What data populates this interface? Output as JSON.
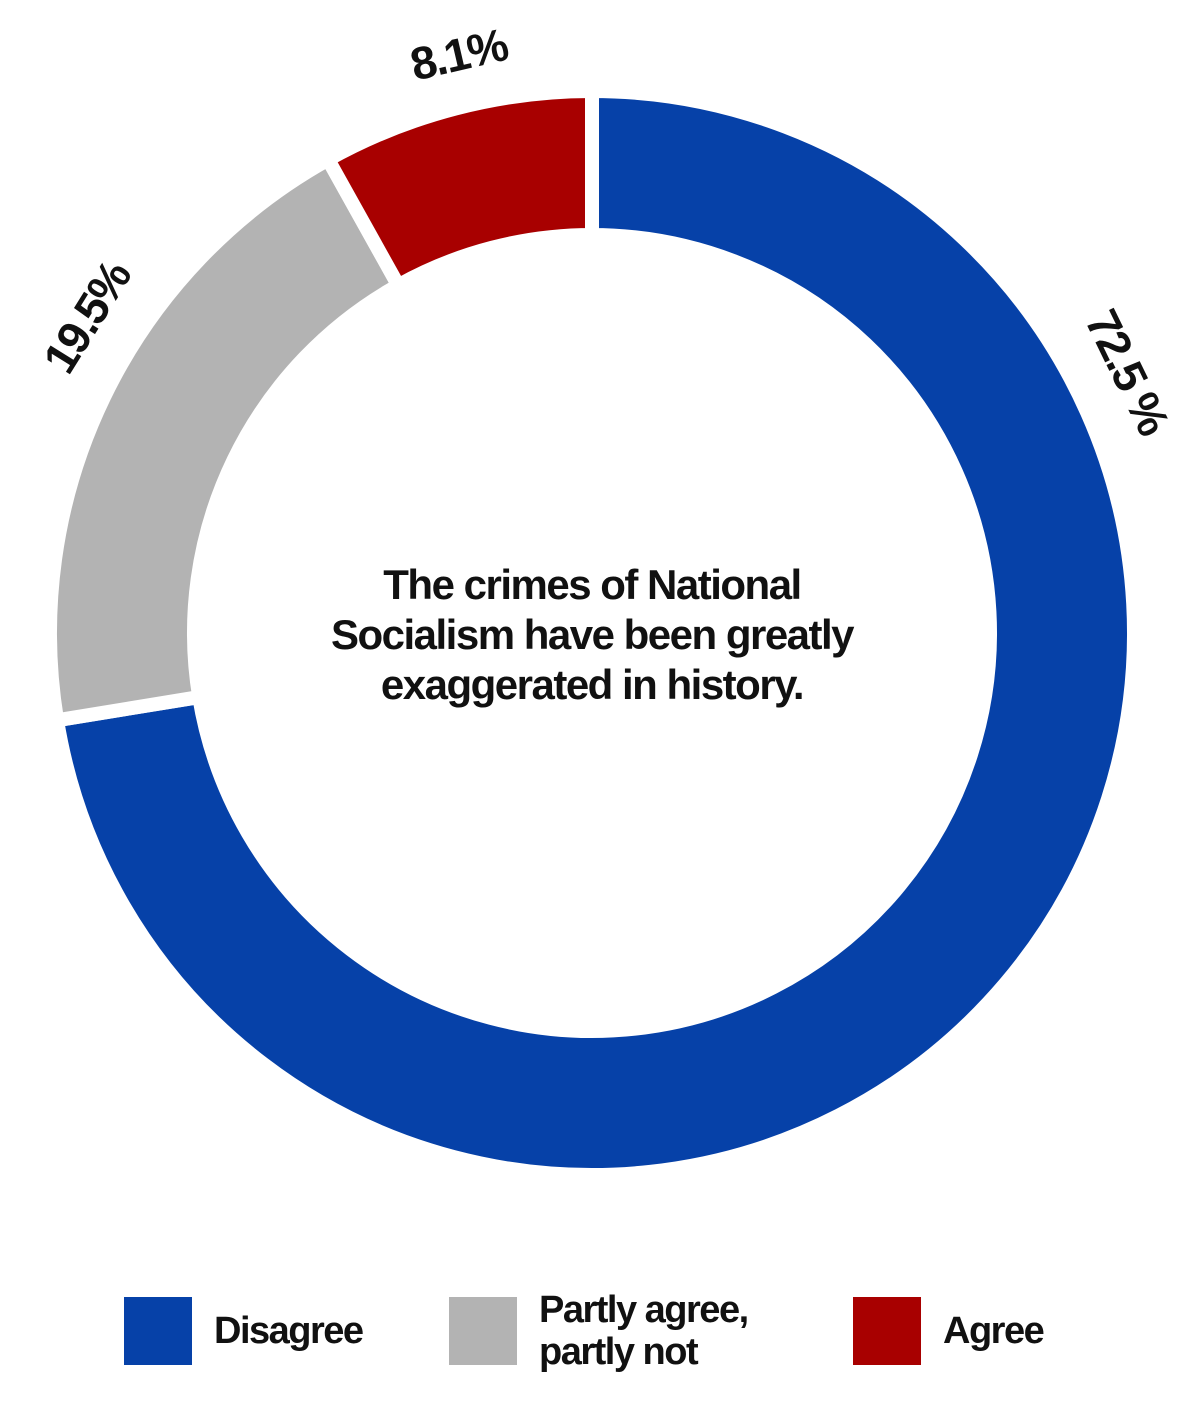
{
  "chart_data": {
    "type": "donut",
    "title": "The crimes of National Socialism have been greatly exaggerated in history.",
    "categories": [
      "Disagree",
      "Partly agree, partly not",
      "Agree"
    ],
    "values": [
      72.5,
      19.5,
      8.1
    ],
    "value_labels": [
      "72.5 %",
      "19.5%",
      "8.1%"
    ],
    "colors": [
      "#0641a8",
      "#b3b3b3",
      "#a80000"
    ]
  }
}
